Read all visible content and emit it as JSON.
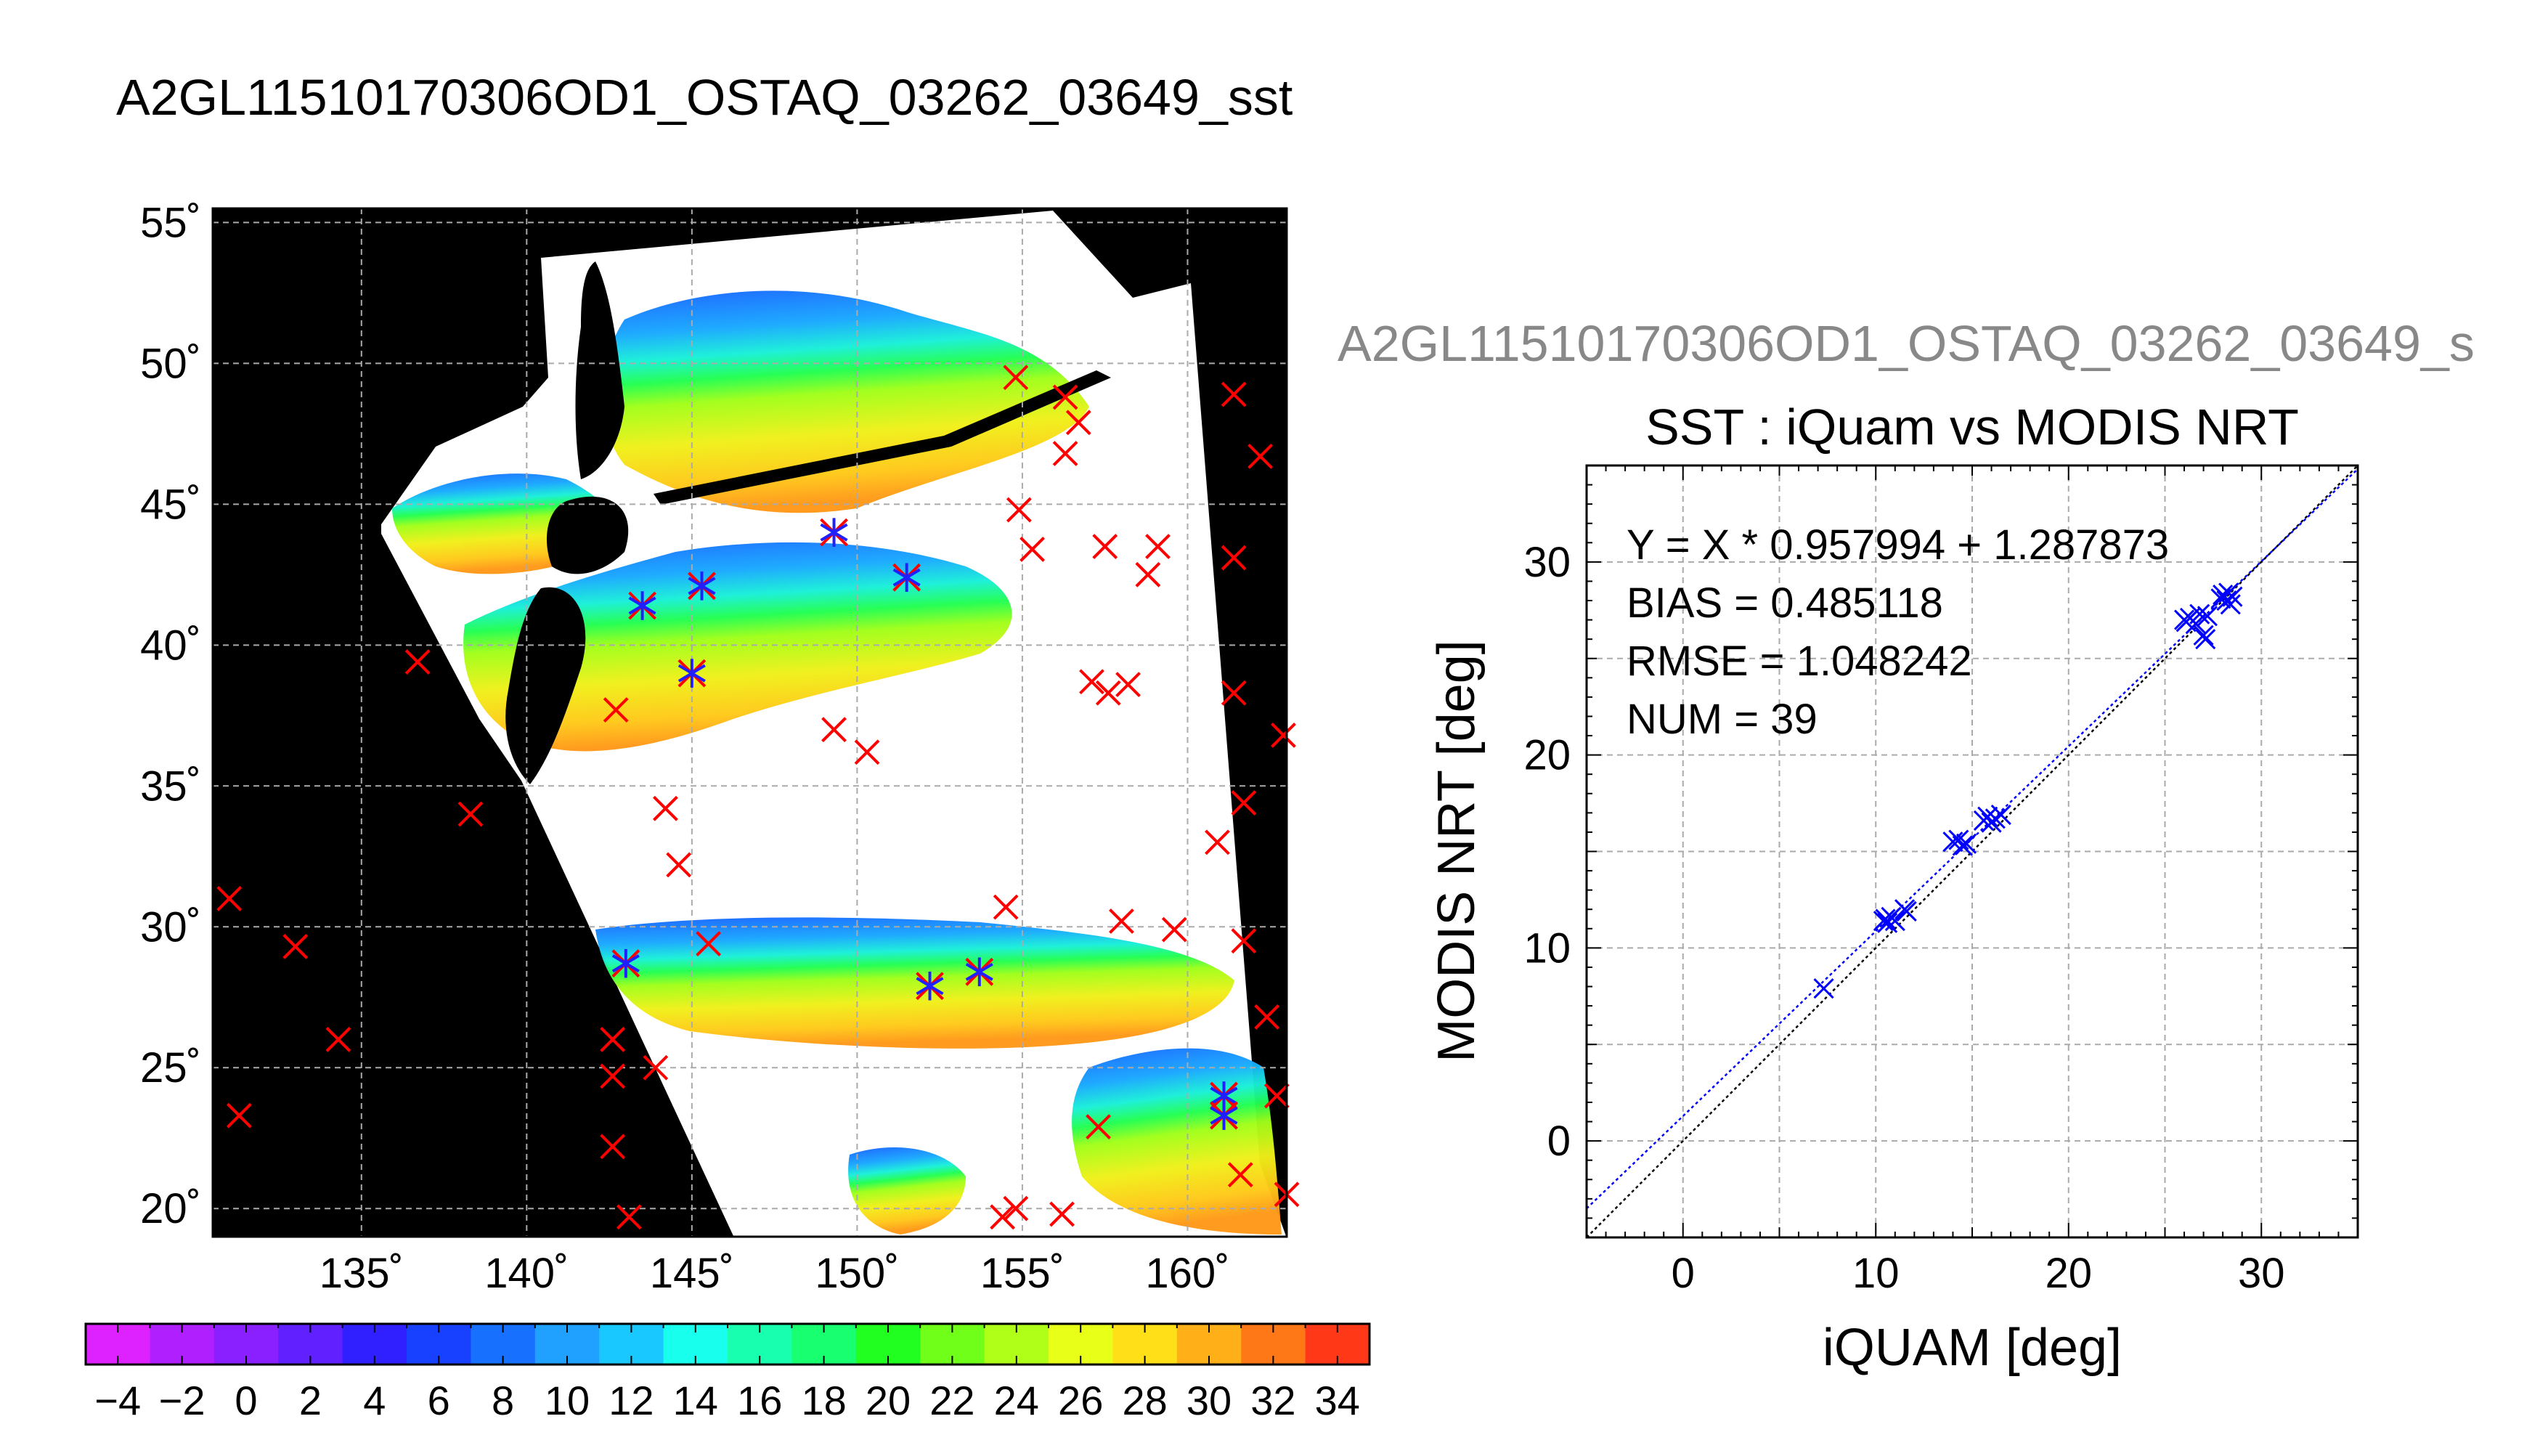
{
  "main_title": "A2GL11510170306OD1_OSTAQ_03262_03649_sst",
  "map": {
    "lon_ticks": [
      "135˚",
      "140˚",
      "145˚",
      "150˚",
      "155˚",
      "160˚"
    ],
    "lat_ticks": [
      "55˚",
      "50˚",
      "45˚",
      "40˚",
      "35˚",
      "30˚",
      "25˚",
      "20˚"
    ],
    "lon_range": [
      130.5,
      163
    ],
    "lat_range": [
      19,
      55.5
    ],
    "background_color": "#000000",
    "coast_note_colors": {
      "land": "#000000",
      "cloud": "#ffffff"
    },
    "matched_points": [
      {
        "lon": 143.5,
        "lat": 41.4
      },
      {
        "lon": 145.3,
        "lat": 42.1
      },
      {
        "lon": 145.0,
        "lat": 39.0
      },
      {
        "lon": 149.3,
        "lat": 44.0
      },
      {
        "lon": 151.5,
        "lat": 42.4
      },
      {
        "lon": 143.0,
        "lat": 28.7
      },
      {
        "lon": 152.2,
        "lat": 27.9
      },
      {
        "lon": 153.7,
        "lat": 28.4
      },
      {
        "lon": 161.1,
        "lat": 24.0
      },
      {
        "lon": 161.1,
        "lat": 23.3
      }
    ],
    "unmatched_points": [
      {
        "lon": 131.0,
        "lat": 31.0
      },
      {
        "lon": 131.3,
        "lat": 23.3
      },
      {
        "lon": 133.0,
        "lat": 29.3
      },
      {
        "lon": 134.3,
        "lat": 26.0
      },
      {
        "lon": 136.7,
        "lat": 39.4
      },
      {
        "lon": 138.3,
        "lat": 34.0
      },
      {
        "lon": 142.7,
        "lat": 37.7
      },
      {
        "lon": 144.2,
        "lat": 34.2
      },
      {
        "lon": 144.6,
        "lat": 32.2
      },
      {
        "lon": 145.5,
        "lat": 29.4
      },
      {
        "lon": 142.6,
        "lat": 26.0
      },
      {
        "lon": 142.6,
        "lat": 24.7
      },
      {
        "lon": 143.9,
        "lat": 25.0
      },
      {
        "lon": 142.6,
        "lat": 22.2
      },
      {
        "lon": 143.1,
        "lat": 19.7
      },
      {
        "lon": 149.3,
        "lat": 37.0
      },
      {
        "lon": 150.3,
        "lat": 36.2
      },
      {
        "lon": 154.8,
        "lat": 49.5
      },
      {
        "lon": 156.3,
        "lat": 48.8
      },
      {
        "lon": 156.7,
        "lat": 47.9
      },
      {
        "lon": 156.3,
        "lat": 46.8
      },
      {
        "lon": 154.9,
        "lat": 44.8
      },
      {
        "lon": 155.3,
        "lat": 43.4
      },
      {
        "lon": 157.5,
        "lat": 43.5
      },
      {
        "lon": 159.1,
        "lat": 43.5
      },
      {
        "lon": 158.8,
        "lat": 42.5
      },
      {
        "lon": 157.1,
        "lat": 38.7
      },
      {
        "lon": 157.6,
        "lat": 38.3
      },
      {
        "lon": 158.2,
        "lat": 38.6
      },
      {
        "lon": 161.4,
        "lat": 48.9
      },
      {
        "lon": 162.2,
        "lat": 46.7
      },
      {
        "lon": 161.4,
        "lat": 43.1
      },
      {
        "lon": 161.4,
        "lat": 38.3
      },
      {
        "lon": 162.9,
        "lat": 36.8
      },
      {
        "lon": 161.7,
        "lat": 34.4
      },
      {
        "lon": 160.9,
        "lat": 33.0
      },
      {
        "lon": 154.5,
        "lat": 30.7
      },
      {
        "lon": 158.0,
        "lat": 30.2
      },
      {
        "lon": 159.6,
        "lat": 29.9
      },
      {
        "lon": 161.7,
        "lat": 29.5
      },
      {
        "lon": 162.4,
        "lat": 26.8
      },
      {
        "lon": 157.3,
        "lat": 22.9
      },
      {
        "lon": 162.7,
        "lat": 24.0
      },
      {
        "lon": 161.6,
        "lat": 21.2
      },
      {
        "lon": 163.0,
        "lat": 20.5
      },
      {
        "lon": 154.4,
        "lat": 19.7
      },
      {
        "lon": 154.8,
        "lat": 20.0
      },
      {
        "lon": 156.2,
        "lat": 19.8
      }
    ]
  },
  "colorbar": {
    "min": -5,
    "max": 35,
    "step": 2,
    "tick_labels": [
      "−4",
      "−2",
      "0",
      "2",
      "4",
      "6",
      "8",
      "10",
      "12",
      "14",
      "16",
      "18",
      "20",
      "22",
      "24",
      "26",
      "28",
      "30",
      "32",
      "34"
    ],
    "colors": [
      "#dd22ff",
      "#b020ff",
      "#8a20ff",
      "#6020ff",
      "#3020ff",
      "#1840ff",
      "#1870ff",
      "#20a0ff",
      "#18c8ff",
      "#18ffee",
      "#18ffb0",
      "#18ff70",
      "#20ff20",
      "#70ff18",
      "#b0ff18",
      "#e8ff18",
      "#ffe018",
      "#ffb018",
      "#ff7818",
      "#ff3818"
    ]
  },
  "scatter_overflow_title": "A2GL11510170306OD1_OSTAQ_03262_03649_s",
  "chart_data": {
    "type": "scatter",
    "title": "SST : iQuam vs MODIS NRT",
    "xlabel": "iQUAM [deg]",
    "ylabel": "MODIS NRT [deg]",
    "xlim": [
      -5,
      35
    ],
    "ylim": [
      -5,
      35
    ],
    "x_ticks": [
      "0",
      "10",
      "20",
      "30"
    ],
    "y_ticks": [
      "0",
      "10",
      "20",
      "30"
    ],
    "grid": true,
    "annotations": [
      "Y = X * 0.957994 + 1.287873",
      "BIAS = 0.485118",
      "RMSE = 1.048242",
      "NUM = 39"
    ],
    "fit": {
      "slope": 0.957994,
      "intercept": 1.287873,
      "color": "#0000ff"
    },
    "identity_line_color": "#000000",
    "point_color": "#0000ff",
    "points": [
      {
        "x": 7.3,
        "y": 7.9
      },
      {
        "x": 10.4,
        "y": 11.4
      },
      {
        "x": 10.5,
        "y": 11.5
      },
      {
        "x": 10.6,
        "y": 11.3
      },
      {
        "x": 10.8,
        "y": 11.6
      },
      {
        "x": 11.0,
        "y": 11.4
      },
      {
        "x": 11.5,
        "y": 12.0
      },
      {
        "x": 11.6,
        "y": 11.9
      },
      {
        "x": 14.0,
        "y": 15.5
      },
      {
        "x": 14.3,
        "y": 15.6
      },
      {
        "x": 14.5,
        "y": 15.3
      },
      {
        "x": 14.7,
        "y": 15.4
      },
      {
        "x": 15.6,
        "y": 16.6
      },
      {
        "x": 15.8,
        "y": 16.8
      },
      {
        "x": 16.0,
        "y": 16.5
      },
      {
        "x": 16.2,
        "y": 16.7
      },
      {
        "x": 16.5,
        "y": 16.9
      },
      {
        "x": 26.0,
        "y": 27.0
      },
      {
        "x": 26.1,
        "y": 26.9
      },
      {
        "x": 26.3,
        "y": 27.1
      },
      {
        "x": 26.6,
        "y": 26.8
      },
      {
        "x": 26.8,
        "y": 27.3
      },
      {
        "x": 27.0,
        "y": 26.2
      },
      {
        "x": 27.1,
        "y": 26.0
      },
      {
        "x": 27.2,
        "y": 27.2
      },
      {
        "x": 27.9,
        "y": 28.1
      },
      {
        "x": 28.0,
        "y": 28.3
      },
      {
        "x": 28.2,
        "y": 28.0
      },
      {
        "x": 28.3,
        "y": 28.4
      },
      {
        "x": 28.5,
        "y": 28.2
      },
      {
        "x": 28.4,
        "y": 27.8
      }
    ]
  }
}
